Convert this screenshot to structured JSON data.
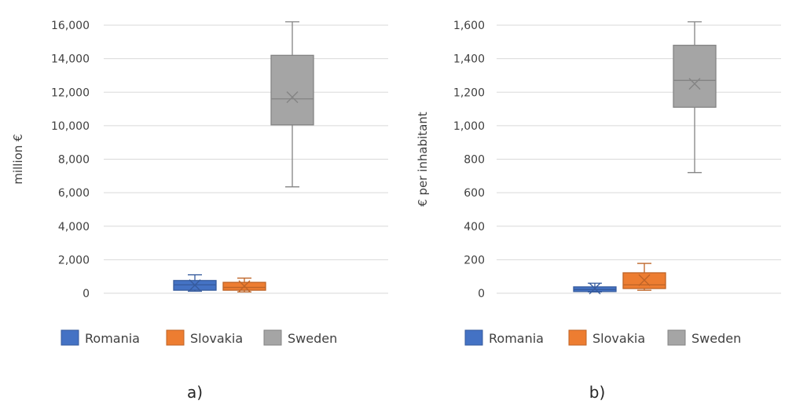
{
  "chart_data": [
    {
      "type": "box",
      "ylabel": "million €",
      "ylim": [
        0,
        16000
      ],
      "yticks": [
        0,
        2000,
        4000,
        6000,
        8000,
        10000,
        12000,
        14000,
        16000
      ],
      "ytick_labels": [
        "0",
        "2,000",
        "4,000",
        "6,000",
        "8,000",
        "10,000",
        "12,000",
        "14,000",
        "16,000"
      ],
      "grid": true,
      "legend_position": "bottom",
      "panel_label": "a)",
      "series": [
        {
          "name": "Romania",
          "color": "#4472C4",
          "min": 120,
          "q1": 180,
          "median": 500,
          "q3": 760,
          "max": 1100,
          "mean": 480
        },
        {
          "name": "Slovakia",
          "color": "#ED7D31",
          "min": 80,
          "q1": 180,
          "median": 350,
          "q3": 650,
          "max": 900,
          "mean": 420
        },
        {
          "name": "Sweden",
          "color": "#A5A5A5",
          "min": 6350,
          "q1": 10050,
          "median": 11600,
          "q3": 14200,
          "max": 16200,
          "mean": 11700
        }
      ]
    },
    {
      "type": "box",
      "ylabel": "€ per inhabitant",
      "ylim": [
        0,
        1600
      ],
      "yticks": [
        0,
        200,
        400,
        600,
        800,
        1000,
        1200,
        1400,
        1600
      ],
      "ytick_labels": [
        "0",
        "200",
        "400",
        "600",
        "800",
        "1,000",
        "1,200",
        "1,400",
        "1,600"
      ],
      "grid": true,
      "legend_position": "bottom",
      "panel_label": "b)",
      "series": [
        {
          "name": "Romania",
          "color": "#4472C4",
          "min": 8,
          "q1": 10,
          "median": 22,
          "q3": 38,
          "max": 60,
          "mean": 28
        },
        {
          "name": "Slovakia",
          "color": "#ED7D31",
          "min": 18,
          "q1": 28,
          "median": 50,
          "q3": 122,
          "max": 178,
          "mean": 78
        },
        {
          "name": "Sweden",
          "color": "#A5A5A5",
          "min": 720,
          "q1": 1110,
          "median": 1270,
          "q3": 1480,
          "max": 1620,
          "mean": 1250
        }
      ]
    }
  ]
}
